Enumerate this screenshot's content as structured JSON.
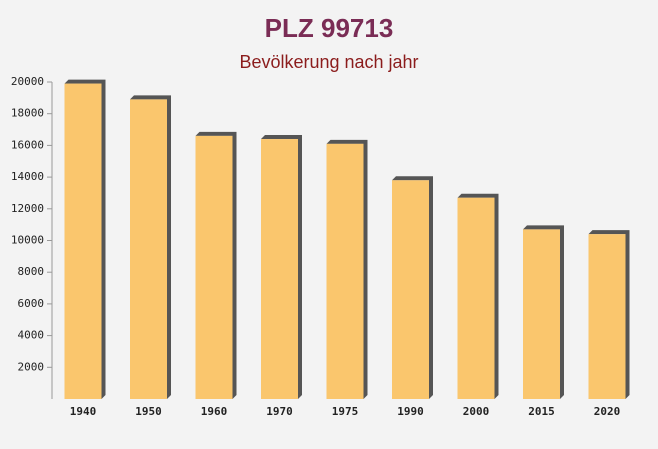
{
  "chart_data": {
    "type": "bar",
    "title": "PLZ 99713",
    "subtitle": "Bevölkerung nach jahr",
    "categories": [
      "1940",
      "1950",
      "1960",
      "1970",
      "1975",
      "1990",
      "2000",
      "2015",
      "2020"
    ],
    "values": [
      19900,
      18900,
      16600,
      16400,
      16100,
      13800,
      12700,
      10700,
      10400
    ],
    "color": "#fbc15e",
    "ylim": [
      0,
      20000
    ],
    "yticks": [
      2000,
      4000,
      6000,
      8000,
      10000,
      12000,
      14000,
      16000,
      18000,
      20000
    ]
  }
}
